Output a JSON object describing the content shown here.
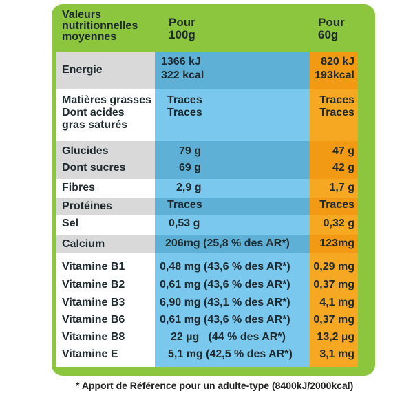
{
  "header": {
    "col1": [
      "Valeurs",
      "nutritionnelles",
      "moyennes"
    ],
    "col2": [
      "Pour",
      "100g"
    ],
    "col3": [
      "Pour",
      "60g"
    ]
  },
  "rows": [
    {
      "label": "Energie",
      "v100": [
        "1366 kJ",
        "322 kcal"
      ],
      "v60": [
        "820 kJ",
        "193kcal"
      ]
    },
    {
      "label": "Matières grasses",
      "v100": "Traces",
      "v60": "Traces"
    },
    {
      "label": "Dont acides",
      "v100": "Traces",
      "v60": "Traces"
    },
    {
      "label": "gras saturés"
    },
    {
      "label": "Glucides",
      "v100": "79 g",
      "v60": "47 g"
    },
    {
      "label": "Dont sucres",
      "v100": "69 g",
      "v60": "42 g"
    },
    {
      "label": "Fibres",
      "v100": "2,9 g",
      "v60": "1,7 g"
    },
    {
      "label": "Protéines",
      "v100": "Traces",
      "v60": "Traces"
    },
    {
      "label": "Sel",
      "v100": "0,53 g",
      "v60": "0,32 g"
    },
    {
      "label": "Calcium",
      "v100": "206mg (25,8 % des AR*)",
      "v60": "123mg"
    },
    {
      "label": "Vitamine B1",
      "v100": "0,48 mg (43,6 % des AR*)",
      "v60": "0,29 mg"
    },
    {
      "label": "Vitamine B2",
      "v100": "0,61 mg (43,6 % des AR*)",
      "v60": "0,37 mg"
    },
    {
      "label": "Vitamine B3",
      "v100": "6,90 mg (43,1 % des AR*)",
      "v60": "4,1 mg"
    },
    {
      "label": "Vitamine B6",
      "v100": "0,61 mg (43,6 % des AR*)",
      "v60": "0,37 mg"
    },
    {
      "label": "Vitamine B8",
      "v100": "22 µg   (44 % des AR*)",
      "v60": "13,2 µg"
    },
    {
      "label": "Vitamine E",
      "v100": "5,1 mg (42,5 % des AR*)",
      "v60": "3,1 mg"
    }
  ],
  "footnote": "* Apport de Référence pour un adulte-type (8400kJ/2000kcal)",
  "colors": {
    "frame_green": "#8cc63f",
    "col_blue": "#7bc8ee",
    "col_blue_shaded": "#5fb0d6",
    "col_orange": "#f7a823",
    "col_orange_shaded": "#f29a14",
    "label_shaded": "#d9d9d9"
  }
}
